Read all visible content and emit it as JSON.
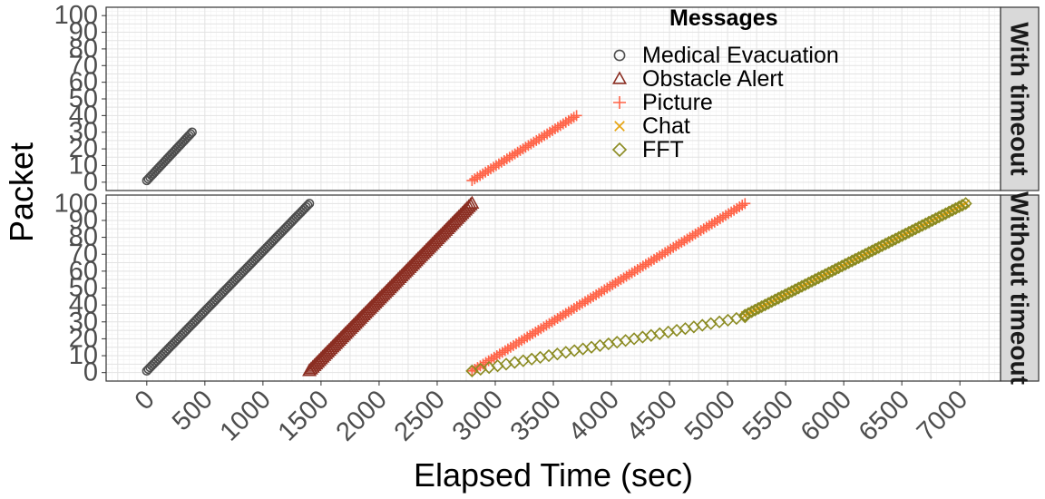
{
  "chart_data": {
    "type": "scatter",
    "xlabel": "Elapsed Time (sec)",
    "ylabel": "Packet",
    "xlim": [
      -350,
      7350
    ],
    "ylim": [
      -5,
      105
    ],
    "x_ticks": [
      0,
      500,
      1000,
      1500,
      2000,
      2500,
      3000,
      3500,
      4000,
      4500,
      5000,
      5500,
      6000,
      6500,
      7000
    ],
    "y_ticks": [
      0,
      10,
      20,
      30,
      40,
      50,
      60,
      70,
      80,
      90,
      100
    ],
    "x_tick_labels": [
      "0",
      "500",
      "1000",
      "1500",
      "2000",
      "2500",
      "3000",
      "3500",
      "4000",
      "4500",
      "5000",
      "5500",
      "6000",
      "6500",
      "7000"
    ],
    "y_tick_labels": [
      "0",
      "10",
      "20",
      "30",
      "40",
      "50",
      "60",
      "70",
      "80",
      "90",
      "100"
    ],
    "grid": true,
    "legend": {
      "title": "Messages",
      "position": "top-right inside top panel",
      "entries": [
        {
          "name": "Medical Evacuation",
          "shape": "circle",
          "color": "#4d4d4d"
        },
        {
          "name": "Obstacle Alert",
          "shape": "triangle",
          "color": "#8b2e22"
        },
        {
          "name": "Picture",
          "shape": "plus",
          "color": "#ff6347"
        },
        {
          "name": "Chat",
          "shape": "cross",
          "color": "#e6a30f"
        },
        {
          "name": "FFT",
          "shape": "diamond",
          "color": "#8b8b22"
        }
      ]
    },
    "panels": [
      {
        "strip": "With timeout",
        "series": [
          {
            "name": "Medical Evacuation",
            "segments": [
              {
                "x0": 0,
                "y0": 1,
                "x1": 390,
                "y1": 30,
                "n": 30
              }
            ]
          },
          {
            "name": "Picture",
            "segments": [
              {
                "x0": 2800,
                "y0": 1,
                "x1": 3700,
                "y1": 40,
                "n": 40
              }
            ]
          }
        ]
      },
      {
        "strip": "Without timeout",
        "series": [
          {
            "name": "Medical Evacuation",
            "segments": [
              {
                "x0": 0,
                "y0": 1,
                "x1": 1400,
                "y1": 100,
                "n": 100
              }
            ]
          },
          {
            "name": "Obstacle Alert",
            "segments": [
              {
                "x0": 1400,
                "y0": 1,
                "x1": 2800,
                "y1": 100,
                "n": 100
              }
            ]
          },
          {
            "name": "Picture",
            "segments": [
              {
                "x0": 2800,
                "y0": 1,
                "x1": 5150,
                "y1": 100,
                "n": 100
              }
            ]
          },
          {
            "name": "Chat",
            "segments": [
              {
                "x0": 5150,
                "y0": 34,
                "x1": 7050,
                "y1": 100,
                "n": 67
              }
            ]
          },
          {
            "name": "FFT",
            "segments": [
              {
                "x0": 2800,
                "y0": 1,
                "x1": 5150,
                "y1": 33,
                "n": 33
              },
              {
                "x0": 5150,
                "y0": 34,
                "x1": 7050,
                "y1": 100,
                "n": 67
              }
            ]
          }
        ]
      }
    ]
  }
}
